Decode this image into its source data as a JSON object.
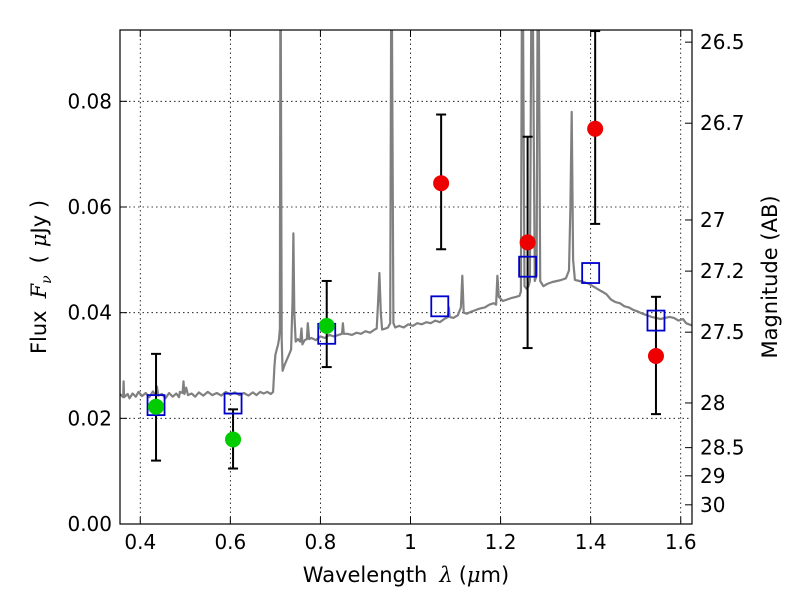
{
  "chart_data": {
    "type": "scatter",
    "xlabel_prefix": "Wavelength",
    "xlabel_symbol": "λ",
    "xlabel_unit_open": "(",
    "xlabel_unit_mu": "μ",
    "xlabel_unit_rest": "m)",
    "ylabel_left_prefix": "Flux",
    "ylabel_left_symbol": "F",
    "ylabel_left_sub": "ν",
    "ylabel_left_unit_open": "(",
    "ylabel_left_unit_mu": "μ",
    "ylabel_left_unit_rest": "Jy )",
    "ylabel_right": "Magnitude (AB)",
    "xlim": [
      0.355,
      1.625
    ],
    "ylim": [
      0.0,
      0.0935
    ],
    "grid": true,
    "x_ticks": [
      {
        "value": 0.4,
        "label": "0.4"
      },
      {
        "value": 0.6,
        "label": "0.6"
      },
      {
        "value": 0.8,
        "label": "0.8"
      },
      {
        "value": 1.0,
        "label": "1"
      },
      {
        "value": 1.2,
        "label": "1.2"
      },
      {
        "value": 1.4,
        "label": "1.4"
      },
      {
        "value": 1.6,
        "label": "1.6"
      }
    ],
    "y_ticks": [
      {
        "value": 0.0,
        "label": "0.00"
      },
      {
        "value": 0.02,
        "label": "0.02"
      },
      {
        "value": 0.04,
        "label": "0.04"
      },
      {
        "value": 0.06,
        "label": "0.06"
      },
      {
        "value": 0.08,
        "label": "0.08"
      }
    ],
    "right_ticks": [
      {
        "mag": 26.5,
        "label": "26.5"
      },
      {
        "mag": 26.7,
        "label": "26.7"
      },
      {
        "mag": 27.0,
        "label": "27"
      },
      {
        "mag": 27.2,
        "label": "27.2"
      },
      {
        "mag": 27.5,
        "label": "27.5"
      },
      {
        "mag": 28.0,
        "label": "28"
      },
      {
        "mag": 28.5,
        "label": "28.5"
      },
      {
        "mag": 29.0,
        "label": "29"
      },
      {
        "mag": 30.0,
        "label": "30"
      }
    ],
    "colors": {
      "spectrum": "#808080",
      "observed_detection": "#00cc00",
      "observed_alt": "#ee0000",
      "model_box": "#0000cc",
      "errorbar": "#000000"
    },
    "model_photometry": [
      {
        "x": 0.435,
        "y": 0.0225
      },
      {
        "x": 0.606,
        "y": 0.0228
      },
      {
        "x": 0.814,
        "y": 0.036
      },
      {
        "x": 1.065,
        "y": 0.0412
      },
      {
        "x": 1.26,
        "y": 0.0487
      },
      {
        "x": 1.4,
        "y": 0.0475
      },
      {
        "x": 1.545,
        "y": 0.0385
      }
    ],
    "observed_photometry": [
      {
        "x": 0.435,
        "y": 0.0222,
        "yerr_low": 0.0102,
        "yerr_high": 0.01,
        "group": "green"
      },
      {
        "x": 0.606,
        "y": 0.016,
        "yerr_low": 0.0055,
        "yerr_high": 0.0057,
        "group": "green"
      },
      {
        "x": 0.814,
        "y": 0.0375,
        "yerr_low": 0.0078,
        "yerr_high": 0.0085,
        "group": "green"
      },
      {
        "x": 1.068,
        "y": 0.0645,
        "yerr_low": 0.0125,
        "yerr_high": 0.013,
        "group": "red"
      },
      {
        "x": 1.26,
        "y": 0.0533,
        "yerr_low": 0.02,
        "yerr_high": 0.02,
        "group": "red"
      },
      {
        "x": 1.41,
        "y": 0.0748,
        "yerr_low": 0.018,
        "yerr_high": 0.0185,
        "group": "red"
      },
      {
        "x": 1.545,
        "y": 0.0318,
        "yerr_low": 0.011,
        "yerr_high": 0.0112,
        "group": "red"
      }
    ],
    "spectrum": [
      [
        0.355,
        0.0246
      ],
      [
        0.362,
        0.024
      ],
      [
        0.363,
        0.027
      ],
      [
        0.364,
        0.024
      ],
      [
        0.372,
        0.0246
      ],
      [
        0.376,
        0.0238
      ],
      [
        0.383,
        0.0247
      ],
      [
        0.39,
        0.0241
      ],
      [
        0.396,
        0.025
      ],
      [
        0.404,
        0.0242
      ],
      [
        0.412,
        0.0248
      ],
      [
        0.42,
        0.024
      ],
      [
        0.428,
        0.0251
      ],
      [
        0.434,
        0.0244
      ],
      [
        0.437,
        0.026
      ],
      [
        0.44,
        0.0243
      ],
      [
        0.448,
        0.0246
      ],
      [
        0.456,
        0.0238
      ],
      [
        0.464,
        0.0248
      ],
      [
        0.472,
        0.0241
      ],
      [
        0.48,
        0.0247
      ],
      [
        0.486,
        0.024
      ],
      [
        0.488,
        0.025
      ],
      [
        0.494,
        0.0248
      ],
      [
        0.496,
        0.027
      ],
      [
        0.498,
        0.0246
      ],
      [
        0.502,
        0.0258
      ],
      [
        0.506,
        0.0244
      ],
      [
        0.514,
        0.0247
      ],
      [
        0.522,
        0.0241
      ],
      [
        0.53,
        0.0249
      ],
      [
        0.54,
        0.0243
      ],
      [
        0.55,
        0.025
      ],
      [
        0.56,
        0.0244
      ],
      [
        0.57,
        0.0248
      ],
      [
        0.58,
        0.0243
      ],
      [
        0.59,
        0.025
      ],
      [
        0.6,
        0.0245
      ],
      [
        0.61,
        0.0249
      ],
      [
        0.62,
        0.0244
      ],
      [
        0.63,
        0.0248
      ],
      [
        0.64,
        0.0243
      ],
      [
        0.65,
        0.0249
      ],
      [
        0.658,
        0.0244
      ],
      [
        0.666,
        0.025
      ],
      [
        0.674,
        0.0247
      ],
      [
        0.682,
        0.025
      ],
      [
        0.69,
        0.0246
      ],
      [
        0.695,
        0.025
      ],
      [
        0.698,
        0.03
      ],
      [
        0.7,
        0.032
      ],
      [
        0.703,
        0.033
      ],
      [
        0.706,
        0.034
      ],
      [
        0.708,
        0.035
      ],
      [
        0.71,
        0.037
      ],
      [
        0.711,
        0.0935
      ],
      [
        0.712,
        0.0935
      ],
      [
        0.714,
        0.035
      ],
      [
        0.716,
        0.029
      ],
      [
        0.72,
        0.03
      ],
      [
        0.725,
        0.031
      ],
      [
        0.73,
        0.032
      ],
      [
        0.735,
        0.033
      ],
      [
        0.738,
        0.042
      ],
      [
        0.74,
        0.055
      ],
      [
        0.742,
        0.04
      ],
      [
        0.745,
        0.0345
      ],
      [
        0.75,
        0.035
      ],
      [
        0.755,
        0.0345
      ],
      [
        0.758,
        0.037
      ],
      [
        0.76,
        0.034
      ],
      [
        0.765,
        0.0348
      ],
      [
        0.77,
        0.035
      ],
      [
        0.772,
        0.038
      ],
      [
        0.775,
        0.035
      ],
      [
        0.78,
        0.0352
      ],
      [
        0.79,
        0.0348
      ],
      [
        0.8,
        0.0355
      ],
      [
        0.81,
        0.0352
      ],
      [
        0.82,
        0.0358
      ],
      [
        0.83,
        0.0355
      ],
      [
        0.84,
        0.0358
      ],
      [
        0.848,
        0.036
      ],
      [
        0.85,
        0.038
      ],
      [
        0.852,
        0.036
      ],
      [
        0.86,
        0.036
      ],
      [
        0.87,
        0.0358
      ],
      [
        0.88,
        0.0362
      ],
      [
        0.89,
        0.036
      ],
      [
        0.9,
        0.0365
      ],
      [
        0.91,
        0.0362
      ],
      [
        0.92,
        0.0368
      ],
      [
        0.925,
        0.037
      ],
      [
        0.928,
        0.042
      ],
      [
        0.931,
        0.0475
      ],
      [
        0.934,
        0.04
      ],
      [
        0.937,
        0.0368
      ],
      [
        0.945,
        0.037
      ],
      [
        0.95,
        0.0372
      ],
      [
        0.955,
        0.038
      ],
      [
        0.957,
        0.0935
      ],
      [
        0.959,
        0.0935
      ],
      [
        0.962,
        0.038
      ],
      [
        0.966,
        0.0372
      ],
      [
        0.975,
        0.0375
      ],
      [
        0.985,
        0.0372
      ],
      [
        0.995,
        0.0378
      ],
      [
        1.005,
        0.0375
      ],
      [
        1.015,
        0.038
      ],
      [
        1.025,
        0.0378
      ],
      [
        1.035,
        0.0382
      ],
      [
        1.045,
        0.038
      ],
      [
        1.055,
        0.0385
      ],
      [
        1.065,
        0.0382
      ],
      [
        1.075,
        0.0388
      ],
      [
        1.083,
        0.0392
      ],
      [
        1.085,
        0.041
      ],
      [
        1.087,
        0.0392
      ],
      [
        1.095,
        0.039
      ],
      [
        1.105,
        0.0395
      ],
      [
        1.112,
        0.041
      ],
      [
        1.115,
        0.047
      ],
      [
        1.118,
        0.04
      ],
      [
        1.125,
        0.0398
      ],
      [
        1.135,
        0.0402
      ],
      [
        1.145,
        0.0405
      ],
      [
        1.155,
        0.0408
      ],
      [
        1.165,
        0.041
      ],
      [
        1.175,
        0.0415
      ],
      [
        1.185,
        0.0418
      ],
      [
        1.19,
        0.0415
      ],
      [
        1.193,
        0.047
      ],
      [
        1.196,
        0.043
      ],
      [
        1.205,
        0.0422
      ],
      [
        1.215,
        0.0425
      ],
      [
        1.225,
        0.0428
      ],
      [
        1.235,
        0.043
      ],
      [
        1.242,
        0.0432
      ],
      [
        1.245,
        0.044
      ],
      [
        1.247,
        0.0935
      ],
      [
        1.25,
        0.0935
      ],
      [
        1.253,
        0.045
      ],
      [
        1.258,
        0.0445
      ],
      [
        1.262,
        0.045
      ],
      [
        1.265,
        0.046
      ],
      [
        1.268,
        0.0935
      ],
      [
        1.272,
        0.0935
      ],
      [
        1.276,
        0.046
      ],
      [
        1.28,
        0.047
      ],
      [
        1.282,
        0.0935
      ],
      [
        1.285,
        0.0935
      ],
      [
        1.288,
        0.046
      ],
      [
        1.295,
        0.045
      ],
      [
        1.305,
        0.0455
      ],
      [
        1.315,
        0.0458
      ],
      [
        1.325,
        0.046
      ],
      [
        1.335,
        0.0462
      ],
      [
        1.345,
        0.0465
      ],
      [
        1.352,
        0.048
      ],
      [
        1.355,
        0.06
      ],
      [
        1.358,
        0.078
      ],
      [
        1.361,
        0.05
      ],
      [
        1.365,
        0.0462
      ],
      [
        1.375,
        0.046
      ],
      [
        1.385,
        0.0458
      ],
      [
        1.395,
        0.0455
      ],
      [
        1.405,
        0.045
      ],
      [
        1.415,
        0.0445
      ],
      [
        1.425,
        0.044
      ],
      [
        1.435,
        0.0435
      ],
      [
        1.445,
        0.0425
      ],
      [
        1.455,
        0.042
      ],
      [
        1.465,
        0.0418
      ],
      [
        1.475,
        0.0412
      ],
      [
        1.485,
        0.041
      ],
      [
        1.495,
        0.0405
      ],
      [
        1.505,
        0.0402
      ],
      [
        1.515,
        0.0398
      ],
      [
        1.525,
        0.0395
      ],
      [
        1.535,
        0.0392
      ],
      [
        1.545,
        0.039
      ],
      [
        1.555,
        0.0388
      ],
      [
        1.565,
        0.039
      ],
      [
        1.575,
        0.0392
      ],
      [
        1.585,
        0.039
      ],
      [
        1.595,
        0.0385
      ],
      [
        1.605,
        0.0388
      ],
      [
        1.612,
        0.038
      ],
      [
        1.618,
        0.0378
      ],
      [
        1.625,
        0.0376
      ]
    ]
  }
}
